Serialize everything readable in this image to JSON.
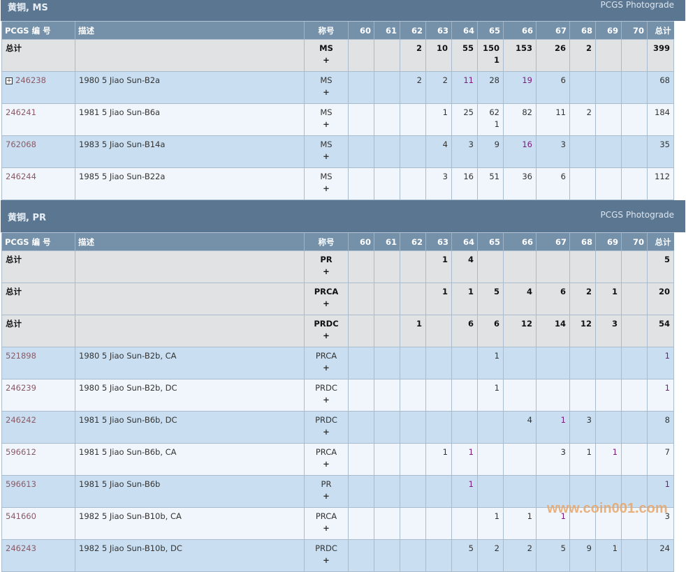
{
  "columns": {
    "pcgs": "PCGS 编 号",
    "desc": "描述",
    "designation": "称号",
    "grades": [
      "60",
      "61",
      "62",
      "63",
      "64",
      "65",
      "66",
      "67",
      "68",
      "69",
      "70"
    ],
    "total": "总计"
  },
  "sections": [
    {
      "title": "黄铜, MS",
      "photograde": "PCGS Photograde",
      "rows": [
        {
          "type": "total",
          "pcgs": "总计",
          "desc": "",
          "des": "MS",
          "plus": "+",
          "cells": [
            "",
            "",
            "2",
            "10",
            "55",
            "150\n1",
            "153",
            "26",
            "2",
            "",
            "",
            "399"
          ],
          "visited": []
        },
        {
          "type": "item",
          "expand": true,
          "pcgs": "246238",
          "desc": "1980 5 Jiao Sun-B2a",
          "des": "MS",
          "plus": "+",
          "cells": [
            "",
            "",
            "2",
            "2",
            "11",
            "28",
            "19",
            "6",
            "",
            "",
            "",
            "68"
          ],
          "visited": [
            4,
            6
          ]
        },
        {
          "type": "item",
          "pcgs": "246241",
          "desc": "1981 5 Jiao Sun-B6a",
          "des": "MS",
          "plus": "+",
          "cells": [
            "",
            "",
            "",
            "1",
            "25",
            "62\n1",
            "82",
            "11",
            "2",
            "",
            "",
            "184"
          ],
          "visited": []
        },
        {
          "type": "item",
          "pcgs": "762068",
          "desc": "1983 5 Jiao Sun-B14a",
          "des": "MS",
          "plus": "+",
          "cells": [
            "",
            "",
            "",
            "4",
            "3",
            "9",
            "16",
            "3",
            "",
            "",
            "",
            "35"
          ],
          "visited": [
            6
          ]
        },
        {
          "type": "item",
          "pcgs": "246244",
          "desc": "1985 5 Jiao Sun-B22a",
          "des": "MS",
          "plus": "+",
          "cells": [
            "",
            "",
            "",
            "3",
            "16",
            "51",
            "36",
            "6",
            "",
            "",
            "",
            "112"
          ],
          "visited": []
        }
      ]
    },
    {
      "title": "黄铜, PR",
      "photograde": "PCGS Photograde",
      "rows": [
        {
          "type": "total",
          "pcgs": "总计",
          "desc": "",
          "des": "PR",
          "plus": "+",
          "cells": [
            "",
            "",
            "",
            "1",
            "4",
            "",
            "",
            "",
            "",
            "",
            "",
            "5"
          ],
          "visited": []
        },
        {
          "type": "total",
          "pcgs": "总计",
          "desc": "",
          "des": "PRCA",
          "plus": "+",
          "cells": [
            "",
            "",
            "",
            "1",
            "1",
            "5",
            "4",
            "6",
            "2",
            "1",
            "",
            "20"
          ],
          "visited": []
        },
        {
          "type": "total",
          "pcgs": "总计",
          "desc": "",
          "des": "PRDC",
          "plus": "+",
          "cells": [
            "",
            "",
            "1",
            "",
            "6",
            "6",
            "12",
            "14",
            "12",
            "3",
            "",
            "54"
          ],
          "visited": []
        },
        {
          "type": "item",
          "pcgs": "521898",
          "desc": "1980 5 Jiao Sun-B2b, CA",
          "des": "PRCA",
          "plus": "+",
          "cells": [
            "",
            "",
            "",
            "",
            "",
            "1",
            "",
            "",
            "",
            "",
            "",
            "1"
          ],
          "visited": [
            11
          ]
        },
        {
          "type": "item",
          "pcgs": "246239",
          "desc": "1980 5 Jiao Sun-B2b, DC",
          "des": "PRDC",
          "plus": "+",
          "cells": [
            "",
            "",
            "",
            "",
            "",
            "1",
            "",
            "",
            "",
            "",
            "",
            "1"
          ],
          "visited": [
            11
          ]
        },
        {
          "type": "item",
          "pcgs": "246242",
          "desc": "1981 5 Jiao Sun-B6b, DC",
          "des": "PRDC",
          "plus": "+",
          "cells": [
            "",
            "",
            "",
            "",
            "",
            "",
            "4",
            "1",
            "3",
            "",
            "",
            "8"
          ],
          "visited": [
            7
          ]
        },
        {
          "type": "item",
          "pcgs": "596612",
          "desc": "1981 5 Jiao Sun-B6b, CA",
          "des": "PRCA",
          "plus": "+",
          "cells": [
            "",
            "",
            "",
            "1",
            "1",
            "",
            "",
            "3",
            "1",
            "1",
            "",
            "7"
          ],
          "visited": [
            4,
            9
          ]
        },
        {
          "type": "item",
          "pcgs": "596613",
          "desc": "1981 5 Jiao Sun-B6b",
          "des": "PR",
          "plus": "+",
          "cells": [
            "",
            "",
            "",
            "",
            "1",
            "",
            "",
            "",
            "",
            "",
            "",
            "1"
          ],
          "visited": [
            4,
            11
          ]
        },
        {
          "type": "item",
          "pcgs": "541660",
          "desc": "1982 5 Jiao Sun-B10b, CA",
          "des": "PRCA",
          "plus": "+",
          "cells": [
            "",
            "",
            "",
            "",
            "",
            "1",
            "1",
            "1",
            "",
            "",
            "",
            "3"
          ],
          "visited": [
            7
          ]
        },
        {
          "type": "item",
          "pcgs": "246243",
          "desc": "1982 5 Jiao Sun-B10b, DC",
          "des": "PRDC",
          "plus": "+",
          "cells": [
            "",
            "",
            "",
            "",
            "5",
            "2",
            "2",
            "5",
            "9",
            "1",
            "",
            "24"
          ],
          "visited": []
        }
      ]
    }
  ],
  "watermark": "www.coin001.com"
}
